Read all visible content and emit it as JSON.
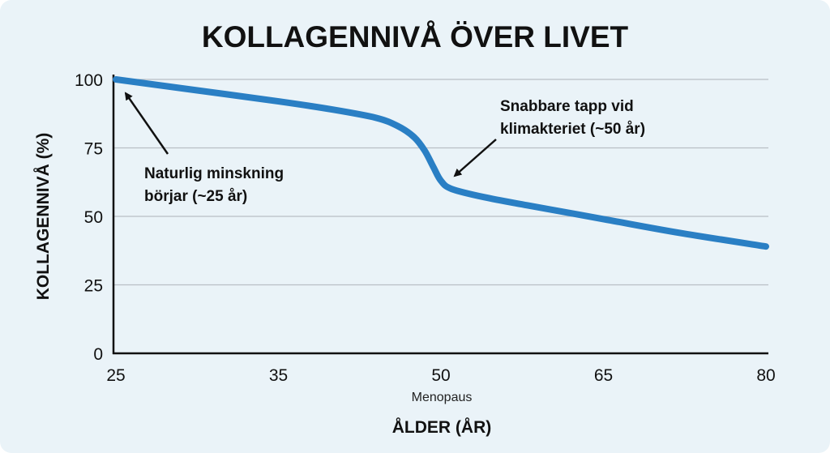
{
  "chart_data": {
    "type": "line",
    "title": "KOLLAGENNIVÅ ÖVER LIVET",
    "xlabel": "ÅLDER (ÅR)",
    "ylabel": "KOLLAGENNIVÅ (%)",
    "x_ticks": [
      25,
      35,
      50,
      65,
      80
    ],
    "x_tick_note": {
      "at": 50,
      "text": "Menopaus"
    },
    "y_ticks": [
      0,
      25,
      50,
      75,
      100
    ],
    "ylim": [
      0,
      100
    ],
    "xlim": [
      25,
      80
    ],
    "x_axis_scale": "tick labels evenly spaced",
    "grid": "horizontal",
    "line_color": "#2a7fc4",
    "series": [
      {
        "x": [
          25,
          30,
          35,
          40,
          44,
          46,
          47.5,
          48.5,
          49.3,
          50,
          51,
          54,
          58,
          65,
          72,
          80
        ],
        "y": [
          100,
          96,
          92,
          89,
          86,
          83,
          79,
          74,
          68,
          63,
          60,
          57,
          54,
          49,
          44,
          39
        ]
      }
    ],
    "annotations": [
      {
        "lines": [
          "Naturlig minskning",
          "börjar (~25 år)"
        ],
        "points_to": [
          25,
          100
        ]
      },
      {
        "lines": [
          "Snabbare tapp vid",
          "klimakteriet (~50 år)"
        ],
        "points_to": [
          50,
          63
        ]
      }
    ]
  }
}
